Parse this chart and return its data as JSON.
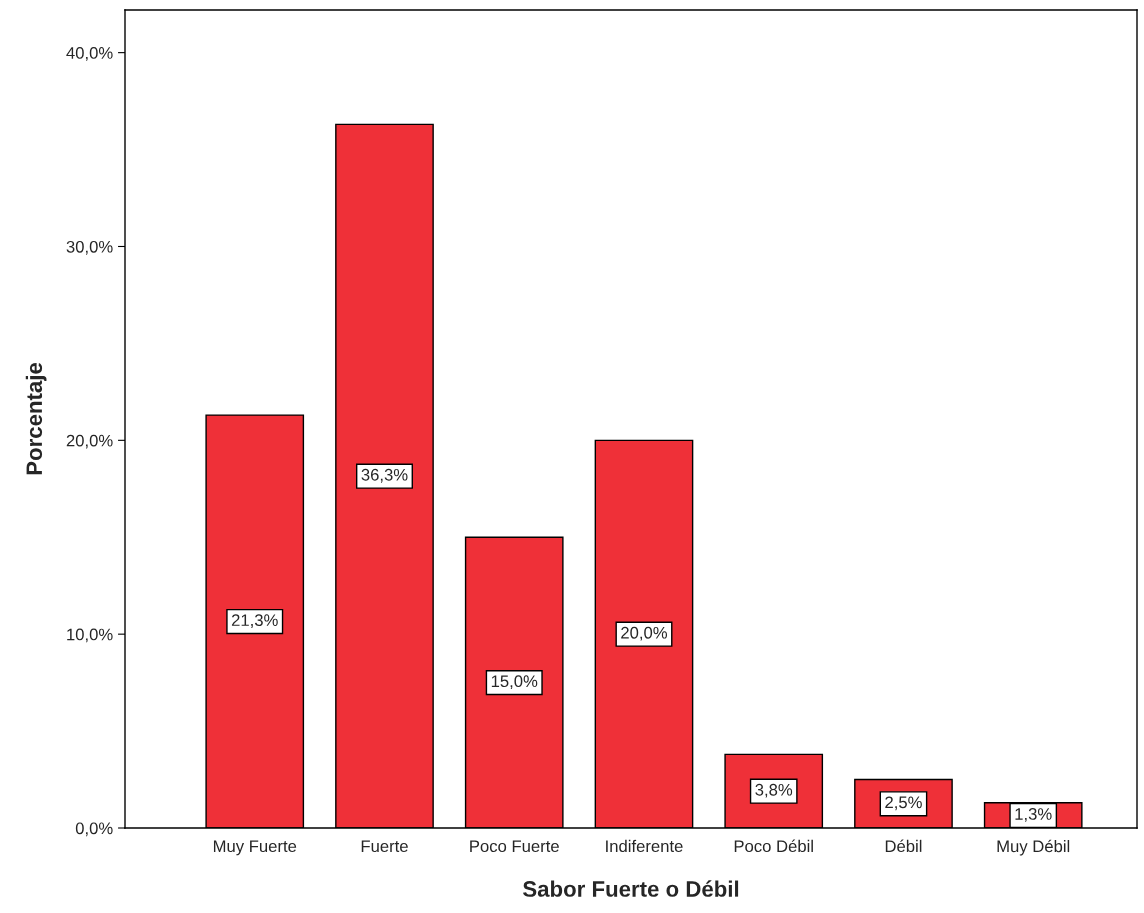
{
  "chart_data": {
    "type": "bar",
    "xlabel": "Sabor Fuerte o Débil",
    "ylabel": "Porcentaje",
    "categories": [
      "Muy Fuerte",
      "Fuerte",
      "Poco Fuerte",
      "Indiferente",
      "Poco Débil",
      "Débil",
      "Muy Débil"
    ],
    "values": [
      21.3,
      36.3,
      15.0,
      20.0,
      3.8,
      2.5,
      1.3
    ],
    "value_labels": [
      "21,3%",
      "36,3%",
      "15,0%",
      "20,0%",
      "3,8%",
      "2,5%",
      "1,3%"
    ],
    "color": "#ef3038",
    "ylim": [
      0,
      42.2
    ],
    "yticks": [
      {
        "value": 0,
        "label": "0,0%"
      },
      {
        "value": 10,
        "label": "10,0%"
      },
      {
        "value": 20,
        "label": "20,0%"
      },
      {
        "value": 30,
        "label": "30,0%"
      },
      {
        "value": 40,
        "label": "40,0%"
      }
    ],
    "grid": false,
    "legend": false
  }
}
